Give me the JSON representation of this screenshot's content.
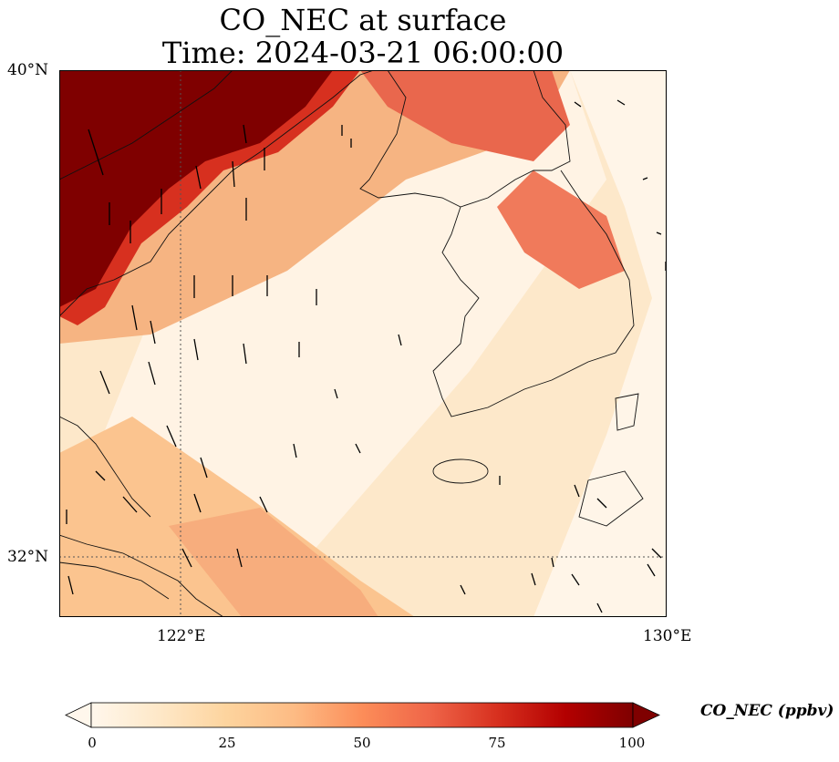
{
  "title": {
    "line1": "CO_NEC at surface",
    "line2": "Time: 2024-03-21 06:00:00"
  },
  "axes": {
    "lat_labels": [
      "40°N",
      "32°N"
    ],
    "lon_labels": [
      "122°E",
      "130°E"
    ],
    "lon_range": [
      120,
      130
    ],
    "lat_range": [
      31,
      40
    ]
  },
  "colorbar": {
    "label": "CO_NEC (ppbv)",
    "ticks": [
      "0",
      "25",
      "50",
      "75",
      "100"
    ],
    "range": [
      0,
      100
    ],
    "extend": "both",
    "colormap": "OrRd",
    "colors": [
      "#fff7ec",
      "#fee8c8",
      "#fdd49e",
      "#fdbb84",
      "#fc8d59",
      "#ef6548",
      "#d7301f",
      "#b30000",
      "#7f0000"
    ]
  },
  "map": {
    "projection": "PlateCarree",
    "gridlines": "dotted",
    "features": [
      "coastline",
      "wind-vectors",
      "concentration-field"
    ]
  }
}
